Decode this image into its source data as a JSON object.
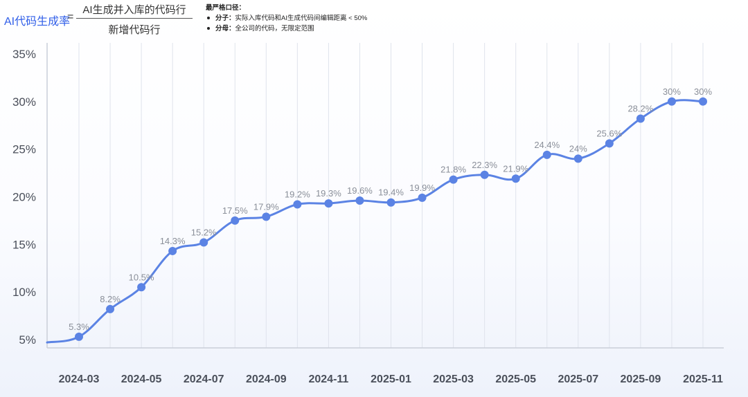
{
  "formula": {
    "name": "AI代码生成率",
    "equals": "=",
    "numerator": "AI生成并入库的代码行",
    "denominator": "新增代码行"
  },
  "notes": {
    "title": "最严格口径：",
    "items": [
      {
        "label": "分子：",
        "text": "实际入库代码和AI生成代码间编辑距离 < 50%"
      },
      {
        "label": "分母：",
        "text": "全公司的代码，无限定范围"
      }
    ]
  },
  "colors": {
    "line": "#5b83e4",
    "label": "#8a8f99",
    "accent": "#2f5ee8"
  },
  "chart_data": {
    "type": "line",
    "title": "AI代码生成率",
    "ylim": [
      5,
      35
    ],
    "yticks": [
      5,
      10,
      15,
      20,
      25,
      30,
      35
    ],
    "ytick_labels": [
      "5%",
      "10%",
      "15%",
      "20%",
      "25%",
      "30%",
      "35%"
    ],
    "x_ticks": [
      "2024-03",
      "2024-05",
      "2024-07",
      "2024-09",
      "2024-11",
      "2025-01",
      "2025-03",
      "2025-05",
      "2025-07",
      "2025-09",
      "2025-11"
    ],
    "series": [
      {
        "name": "AI代码生成率",
        "start_value": 4.7,
        "points": [
          {
            "x": "2024-03",
            "value": 5.3,
            "label": "5.3%"
          },
          {
            "x": "2024-04",
            "value": 8.2,
            "label": "8.2%"
          },
          {
            "x": "2024-05",
            "value": 10.5,
            "label": "10.5%"
          },
          {
            "x": "2024-06",
            "value": 14.3,
            "label": "14.3%"
          },
          {
            "x": "2024-07",
            "value": 15.2,
            "label": "15.2%"
          },
          {
            "x": "2024-08",
            "value": 17.5,
            "label": "17.5%"
          },
          {
            "x": "2024-09",
            "value": 17.9,
            "label": "17.9%"
          },
          {
            "x": "2024-10",
            "value": 19.2,
            "label": "19.2%"
          },
          {
            "x": "2024-11",
            "value": 19.3,
            "label": "19.3%"
          },
          {
            "x": "2024-12",
            "value": 19.6,
            "label": "19.6%"
          },
          {
            "x": "2025-01",
            "value": 19.4,
            "label": "19.4%"
          },
          {
            "x": "2025-02",
            "value": 19.9,
            "label": "19.9%"
          },
          {
            "x": "2025-03",
            "value": 21.8,
            "label": "21.8%"
          },
          {
            "x": "2025-04",
            "value": 22.3,
            "label": "22.3%"
          },
          {
            "x": "2025-05",
            "value": 21.9,
            "label": "21.9%"
          },
          {
            "x": "2025-06",
            "value": 24.4,
            "label": "24.4%"
          },
          {
            "x": "2025-07",
            "value": 24,
            "label": "24%"
          },
          {
            "x": "2025-08",
            "value": 25.6,
            "label": "25.6%"
          },
          {
            "x": "2025-09",
            "value": 28.2,
            "label": "28.2%"
          },
          {
            "x": "2025-10",
            "value": 30,
            "label": "30%"
          },
          {
            "x": "2025-11",
            "value": 30,
            "label": "30%"
          }
        ]
      }
    ]
  }
}
